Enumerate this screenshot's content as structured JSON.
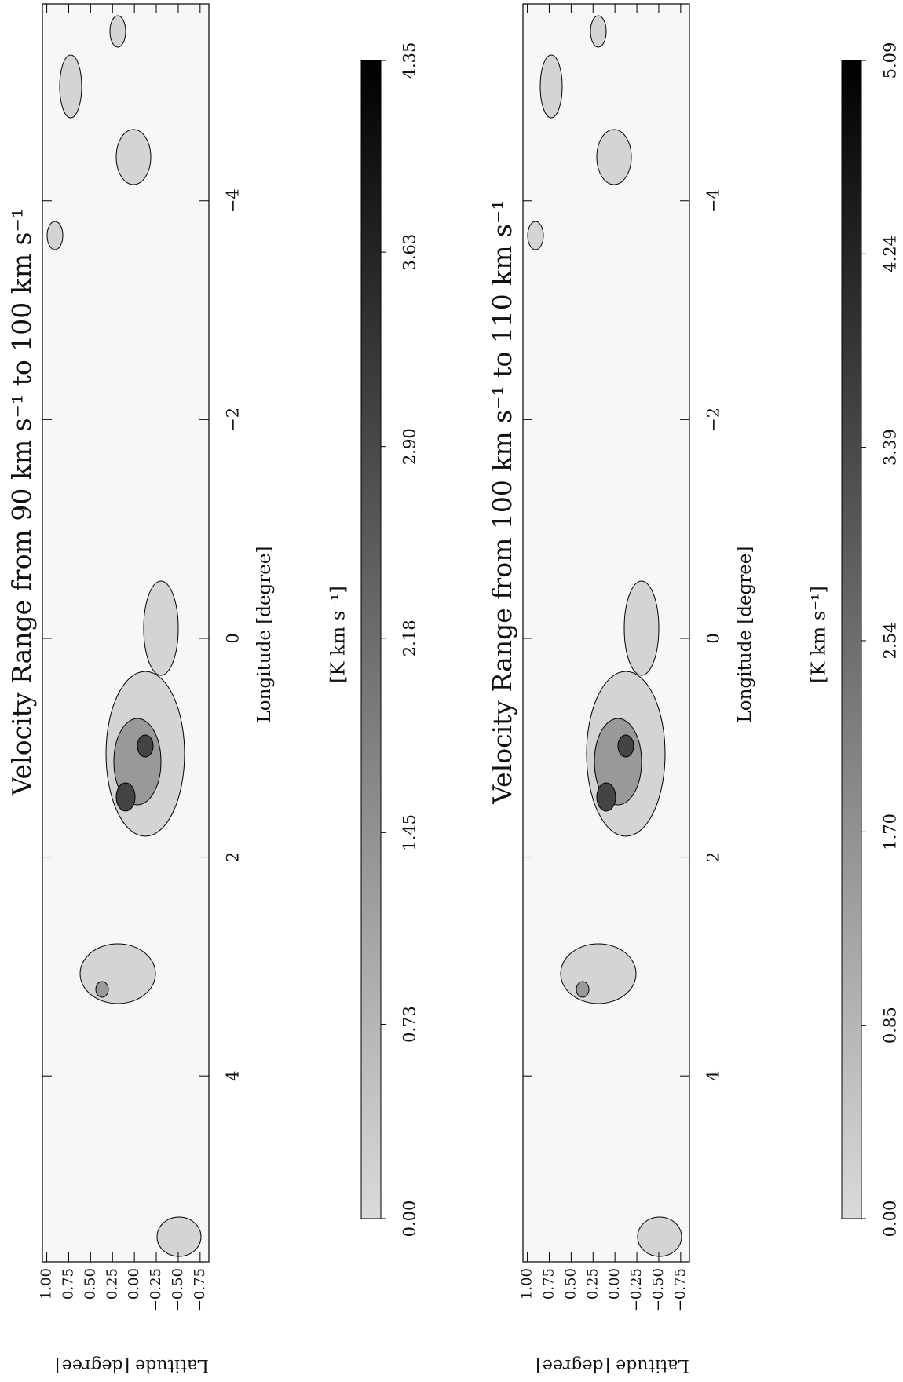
{
  "chart_data": [
    {
      "type": "contour-map",
      "title": "Velocity Range from  90 km s⁻¹ to 100 km s⁻¹",
      "xlabel": "Longitude [degree]",
      "ylabel": "Latitude [degree]",
      "xlim": [
        5.7,
        -5.8
      ],
      "xticks": [
        4,
        2,
        0,
        {
          "value": -2,
          "label": "−2"
        },
        {
          "value": -4,
          "label": "−4"
        }
      ],
      "ylim": [
        -0.85,
        1.05
      ],
      "yticks": [
        {
          "value": 1,
          "label": "1.00"
        },
        {
          "value": 0.75,
          "label": "0.75"
        },
        {
          "value": 0.5,
          "label": "0.50"
        },
        {
          "value": 0.25,
          "label": "0.25"
        },
        {
          "value": 0,
          "label": "0.00"
        },
        {
          "value": -0.25,
          "label": "−0.25"
        },
        {
          "value": -0.5,
          "label": "−0.50"
        },
        {
          "value": -0.75,
          "label": "−0.75"
        }
      ],
      "colorbar": {
        "label": "[K km s⁻¹]",
        "lim": [
          0,
          4.35
        ],
        "colors": [
          "#dadada",
          "#000000"
        ],
        "ticks": [
          {
            "value": 0,
            "label": "0.00"
          },
          0.73,
          1.45,
          2.18,
          {
            "value": 2.9,
            "label": "2.90"
          },
          3.63,
          4.35
        ]
      }
    },
    {
      "type": "contour-map",
      "title": "Velocity Range from  100 km s⁻¹ to 110 km s⁻¹",
      "xlabel": "Longitude [degree]",
      "ylabel": "Latitude [degree]",
      "xlim": [
        5.7,
        -5.8
      ],
      "xticks": [
        4,
        2,
        0,
        {
          "value": -2,
          "label": "−2"
        },
        {
          "value": -4,
          "label": "−4"
        }
      ],
      "ylim": [
        -0.85,
        1.05
      ],
      "yticks": [
        {
          "value": 1,
          "label": "1.00"
        },
        {
          "value": 0.75,
          "label": "0.75"
        },
        {
          "value": 0.5,
          "label": "0.50"
        },
        {
          "value": 0.25,
          "label": "0.25"
        },
        {
          "value": 0,
          "label": "0.00"
        },
        {
          "value": -0.25,
          "label": "−0.25"
        },
        {
          "value": -0.5,
          "label": "−0.50"
        },
        {
          "value": -0.75,
          "label": "−0.75"
        }
      ],
      "colorbar": {
        "label": "[K km s⁻¹]",
        "lim": [
          0,
          5.09
        ],
        "colors": [
          "#dadada",
          "#000000"
        ],
        "ticks": [
          {
            "value": 0,
            "label": "0.00"
          },
          0.85,
          {
            "value": 1.7,
            "label": "1.70"
          },
          2.54,
          3.39,
          4.24,
          5.09
        ]
      }
    }
  ]
}
